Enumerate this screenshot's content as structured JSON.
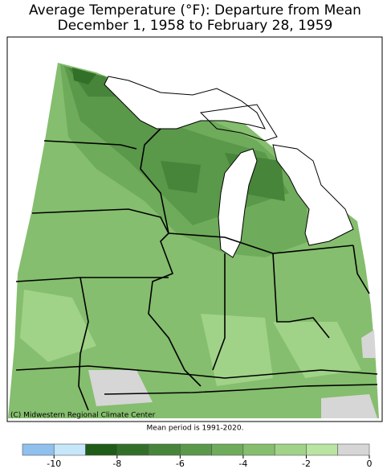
{
  "header": {
    "title_line1": "Average Temperature (°F): Departure from Mean",
    "title_line2": "December 1, 1958 to February 28, 1959"
  },
  "map": {
    "credit": "(C) Midwestern Regional Climate Center",
    "note": "Mean period is 1991-2020."
  },
  "colorbar": {
    "boundaries": [
      -11,
      -10,
      -9,
      -8,
      -7,
      -6,
      -5,
      -4,
      -3,
      -2,
      -1,
      0
    ],
    "colors": [
      "#8fc0ee",
      "#c6e6fa",
      "#1f5c17",
      "#32702a",
      "#46853a",
      "#5a984a",
      "#6eab5b",
      "#85be6e",
      "#a0d288",
      "#b9e4a2",
      "#d6d6d6"
    ],
    "ticks": [
      -10,
      -8,
      -6,
      -4,
      -2,
      0
    ]
  }
}
